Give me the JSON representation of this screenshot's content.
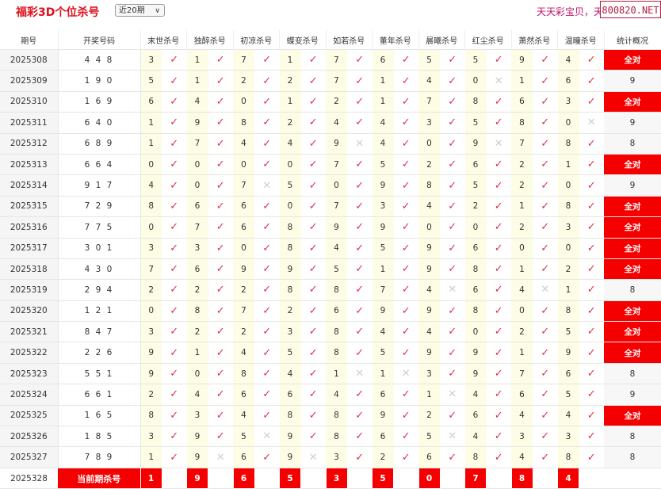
{
  "header": {
    "title": "福彩3D个位杀号",
    "period_select": "近20期",
    "slogan": "天天彩宝贝，天",
    "brand": "800820.NET"
  },
  "columns": [
    "期号",
    "开奖号码",
    "末世杀号",
    "独醉杀号",
    "初凉杀号",
    "蝶变杀号",
    "如若杀号",
    "董年杀号",
    "晨曦杀号",
    "红尘杀号",
    "萧然杀号",
    "温瞳杀号",
    "统计概况"
  ],
  "rows": [
    {
      "issue": "2025308",
      "draw": "4 4 8",
      "kills": [
        "3",
        "1",
        "7",
        "1",
        "7",
        "6",
        "5",
        "5",
        "9",
        "4"
      ],
      "hits": [
        1,
        1,
        1,
        1,
        1,
        1,
        1,
        1,
        1,
        1
      ],
      "stat": "全对"
    },
    {
      "issue": "2025309",
      "draw": "1 9 0",
      "kills": [
        "5",
        "1",
        "2",
        "2",
        "7",
        "1",
        "4",
        "0",
        "1",
        "6"
      ],
      "hits": [
        1,
        1,
        1,
        1,
        1,
        1,
        1,
        0,
        1,
        1
      ],
      "stat": "9"
    },
    {
      "issue": "2025310",
      "draw": "1 6 9",
      "kills": [
        "6",
        "4",
        "0",
        "1",
        "2",
        "1",
        "7",
        "8",
        "6",
        "3"
      ],
      "hits": [
        1,
        1,
        1,
        1,
        1,
        1,
        1,
        1,
        1,
        1
      ],
      "stat": "全对"
    },
    {
      "issue": "2025311",
      "draw": "6 4 0",
      "kills": [
        "1",
        "9",
        "8",
        "2",
        "4",
        "4",
        "3",
        "5",
        "8",
        "0"
      ],
      "hits": [
        1,
        1,
        1,
        1,
        1,
        1,
        1,
        1,
        1,
        0
      ],
      "stat": "9"
    },
    {
      "issue": "2025312",
      "draw": "6 8 9",
      "kills": [
        "1",
        "7",
        "4",
        "4",
        "9",
        "4",
        "0",
        "9",
        "7",
        "8"
      ],
      "hits": [
        1,
        1,
        1,
        1,
        0,
        1,
        1,
        0,
        1,
        1
      ],
      "stat": "8"
    },
    {
      "issue": "2025313",
      "draw": "6 6 4",
      "kills": [
        "0",
        "0",
        "0",
        "0",
        "7",
        "5",
        "2",
        "6",
        "2",
        "1"
      ],
      "hits": [
        1,
        1,
        1,
        1,
        1,
        1,
        1,
        1,
        1,
        1
      ],
      "stat": "全对"
    },
    {
      "issue": "2025314",
      "draw": "9 1 7",
      "kills": [
        "4",
        "0",
        "7",
        "5",
        "0",
        "9",
        "8",
        "5",
        "2",
        "0"
      ],
      "hits": [
        1,
        1,
        0,
        1,
        1,
        1,
        1,
        1,
        1,
        1
      ],
      "stat": "9"
    },
    {
      "issue": "2025315",
      "draw": "7 2 9",
      "kills": [
        "8",
        "6",
        "6",
        "0",
        "7",
        "3",
        "4",
        "2",
        "1",
        "8"
      ],
      "hits": [
        1,
        1,
        1,
        1,
        1,
        1,
        1,
        1,
        1,
        1
      ],
      "stat": "全对"
    },
    {
      "issue": "2025316",
      "draw": "7 7 5",
      "kills": [
        "0",
        "7",
        "6",
        "8",
        "9",
        "9",
        "0",
        "0",
        "2",
        "3"
      ],
      "hits": [
        1,
        1,
        1,
        1,
        1,
        1,
        1,
        1,
        1,
        1
      ],
      "stat": "全对"
    },
    {
      "issue": "2025317",
      "draw": "3 0 1",
      "kills": [
        "3",
        "3",
        "0",
        "8",
        "4",
        "5",
        "9",
        "6",
        "0",
        "0"
      ],
      "hits": [
        1,
        1,
        1,
        1,
        1,
        1,
        1,
        1,
        1,
        1
      ],
      "stat": "全对"
    },
    {
      "issue": "2025318",
      "draw": "4 3 0",
      "kills": [
        "7",
        "6",
        "9",
        "9",
        "5",
        "1",
        "9",
        "8",
        "1",
        "2"
      ],
      "hits": [
        1,
        1,
        1,
        1,
        1,
        1,
        1,
        1,
        1,
        1
      ],
      "stat": "全对"
    },
    {
      "issue": "2025319",
      "draw": "2 9 4",
      "kills": [
        "2",
        "2",
        "2",
        "8",
        "8",
        "7",
        "4",
        "6",
        "4",
        "1"
      ],
      "hits": [
        1,
        1,
        1,
        1,
        1,
        1,
        0,
        1,
        0,
        1
      ],
      "stat": "8"
    },
    {
      "issue": "2025320",
      "draw": "1 2 1",
      "kills": [
        "0",
        "8",
        "7",
        "2",
        "6",
        "9",
        "9",
        "8",
        "0",
        "8"
      ],
      "hits": [
        1,
        1,
        1,
        1,
        1,
        1,
        1,
        1,
        1,
        1
      ],
      "stat": "全对"
    },
    {
      "issue": "2025321",
      "draw": "8 4 7",
      "kills": [
        "3",
        "2",
        "2",
        "3",
        "8",
        "4",
        "4",
        "0",
        "2",
        "5"
      ],
      "hits": [
        1,
        1,
        1,
        1,
        1,
        1,
        1,
        1,
        1,
        1
      ],
      "stat": "全对"
    },
    {
      "issue": "2025322",
      "draw": "2 2 6",
      "kills": [
        "9",
        "1",
        "4",
        "5",
        "8",
        "5",
        "9",
        "9",
        "1",
        "9"
      ],
      "hits": [
        1,
        1,
        1,
        1,
        1,
        1,
        1,
        1,
        1,
        1
      ],
      "stat": "全对"
    },
    {
      "issue": "2025323",
      "draw": "5 5 1",
      "kills": [
        "9",
        "0",
        "8",
        "4",
        "1",
        "1",
        "3",
        "9",
        "7",
        "6"
      ],
      "hits": [
        1,
        1,
        1,
        1,
        0,
        0,
        1,
        1,
        1,
        1
      ],
      "stat": "8"
    },
    {
      "issue": "2025324",
      "draw": "6 6 1",
      "kills": [
        "2",
        "4",
        "6",
        "6",
        "4",
        "6",
        "1",
        "4",
        "6",
        "5"
      ],
      "hits": [
        1,
        1,
        1,
        1,
        1,
        1,
        0,
        1,
        1,
        1
      ],
      "stat": "9"
    },
    {
      "issue": "2025325",
      "draw": "1 6 5",
      "kills": [
        "8",
        "3",
        "4",
        "8",
        "8",
        "9",
        "2",
        "6",
        "4",
        "4"
      ],
      "hits": [
        1,
        1,
        1,
        1,
        1,
        1,
        1,
        1,
        1,
        1
      ],
      "stat": "全对"
    },
    {
      "issue": "2025326",
      "draw": "1 8 5",
      "kills": [
        "3",
        "9",
        "5",
        "9",
        "8",
        "6",
        "5",
        "4",
        "3",
        "3"
      ],
      "hits": [
        1,
        1,
        0,
        1,
        1,
        1,
        0,
        1,
        1,
        1
      ],
      "stat": "8"
    },
    {
      "issue": "2025327",
      "draw": "7 8 9",
      "kills": [
        "1",
        "9",
        "6",
        "9",
        "3",
        "2",
        "6",
        "8",
        "4",
        "8"
      ],
      "hits": [
        1,
        0,
        1,
        0,
        1,
        1,
        1,
        1,
        1,
        1
      ],
      "stat": "8"
    }
  ],
  "current": {
    "issue": "2025328",
    "label": "当前期杀号",
    "kills": [
      "1",
      "9",
      "6",
      "5",
      "3",
      "5",
      "0",
      "7",
      "8",
      "4"
    ]
  },
  "marks": {
    "hit": "✓",
    "miss": "✕"
  },
  "colors": {
    "accent": "#f50000",
    "hit": "#e0304a",
    "miss": "#cfcfcf",
    "kill_bg": "#fdfde6"
  }
}
